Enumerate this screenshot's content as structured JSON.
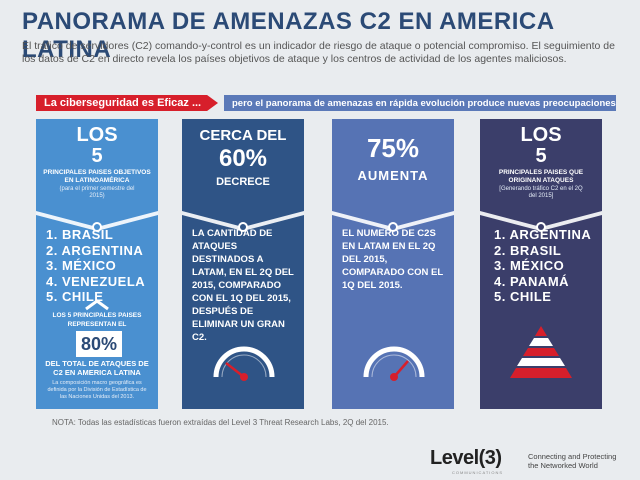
{
  "title": "PANORAMA DE AMENAZAS C2 EN AMERICA LATINA",
  "intro": "El tráfico de servidores (C2) comando-y-control es un indicador de riesgo de ataque o potencial compromiso. El seguimiento de los datos de C2 en directo revela los países objetivos de ataque y los centros de actividad de los agentes maliciosos.",
  "banner": {
    "left": "La ciberseguridad es Eficaz ...",
    "right": "pero el panorama de amenazas en rápida evolución produce nuevas preocupaciones"
  },
  "col1": {
    "l1": "LOS",
    "l2": "5",
    "l3": "PRINCIPALES PAISES OBJETIVOS EN LATINOAMÉRICA",
    "l4": "(para el primer semestre del 2015)",
    "items": [
      "1. BRASIL",
      "2. ARGENTINA",
      "3. MÉXICO",
      "4. VENEZUELA",
      "5. CHILE"
    ],
    "sub_note": "LOS 5 PRINCIPALES PAISES REPRESENTAN EL",
    "pct": "80%",
    "pct_note": "DEL TOTAL DE ATAQUES DE C2 EN AMERICA LATINA",
    "footnote": "La composición macro geográfica es definida por la División de Estadística de las Naciones Unidas del 2013."
  },
  "col2": {
    "l1": "CERCA DEL",
    "l2": "60%",
    "l3": "DECRECE",
    "para": "LA CANTIDAD DE ATAQUES DESTINADOS A LATAM, EN EL 2Q DEL 2015, COMPARADO CON EL 1Q DEL 2015, DESPUÉS DE ELIMINAR UN GRAN C2."
  },
  "col3": {
    "l1": "75%",
    "l2": "AUMENTA",
    "para": "EL NUMERO DE C2S EN LATAM EN EL 2Q DEL 2015, COMPARADO CON EL 1Q DEL 2015."
  },
  "col4": {
    "l1": "LOS",
    "l2": "5",
    "l3": "PRINCIPALES PAISES QUE ORIGINAN ATAQUES",
    "l4": "[Generando tráfico C2 en el 2Q del 2015]",
    "items": [
      "1. ARGENTINA",
      "2. BRASIL",
      "3. MÉXICO",
      "4. PANAMÁ",
      "5. CHILE"
    ]
  },
  "note": "NOTA: Todas las estadísticas fueron extraídas del Level 3 Threat Research Labs, 2Q del 2015.",
  "logo": {
    "name": "Level(3)",
    "sub": "COMMUNICATIONS",
    "tagline_1": "Connecting and Protecting",
    "tagline_2": "the Networked World"
  },
  "colors": {
    "title": "#2b4a76",
    "red": "#d71f2b",
    "col1": "#4a90d0",
    "col2": "#2f5486",
    "col3": "#5673b4",
    "col4": "#3b3e6a"
  }
}
